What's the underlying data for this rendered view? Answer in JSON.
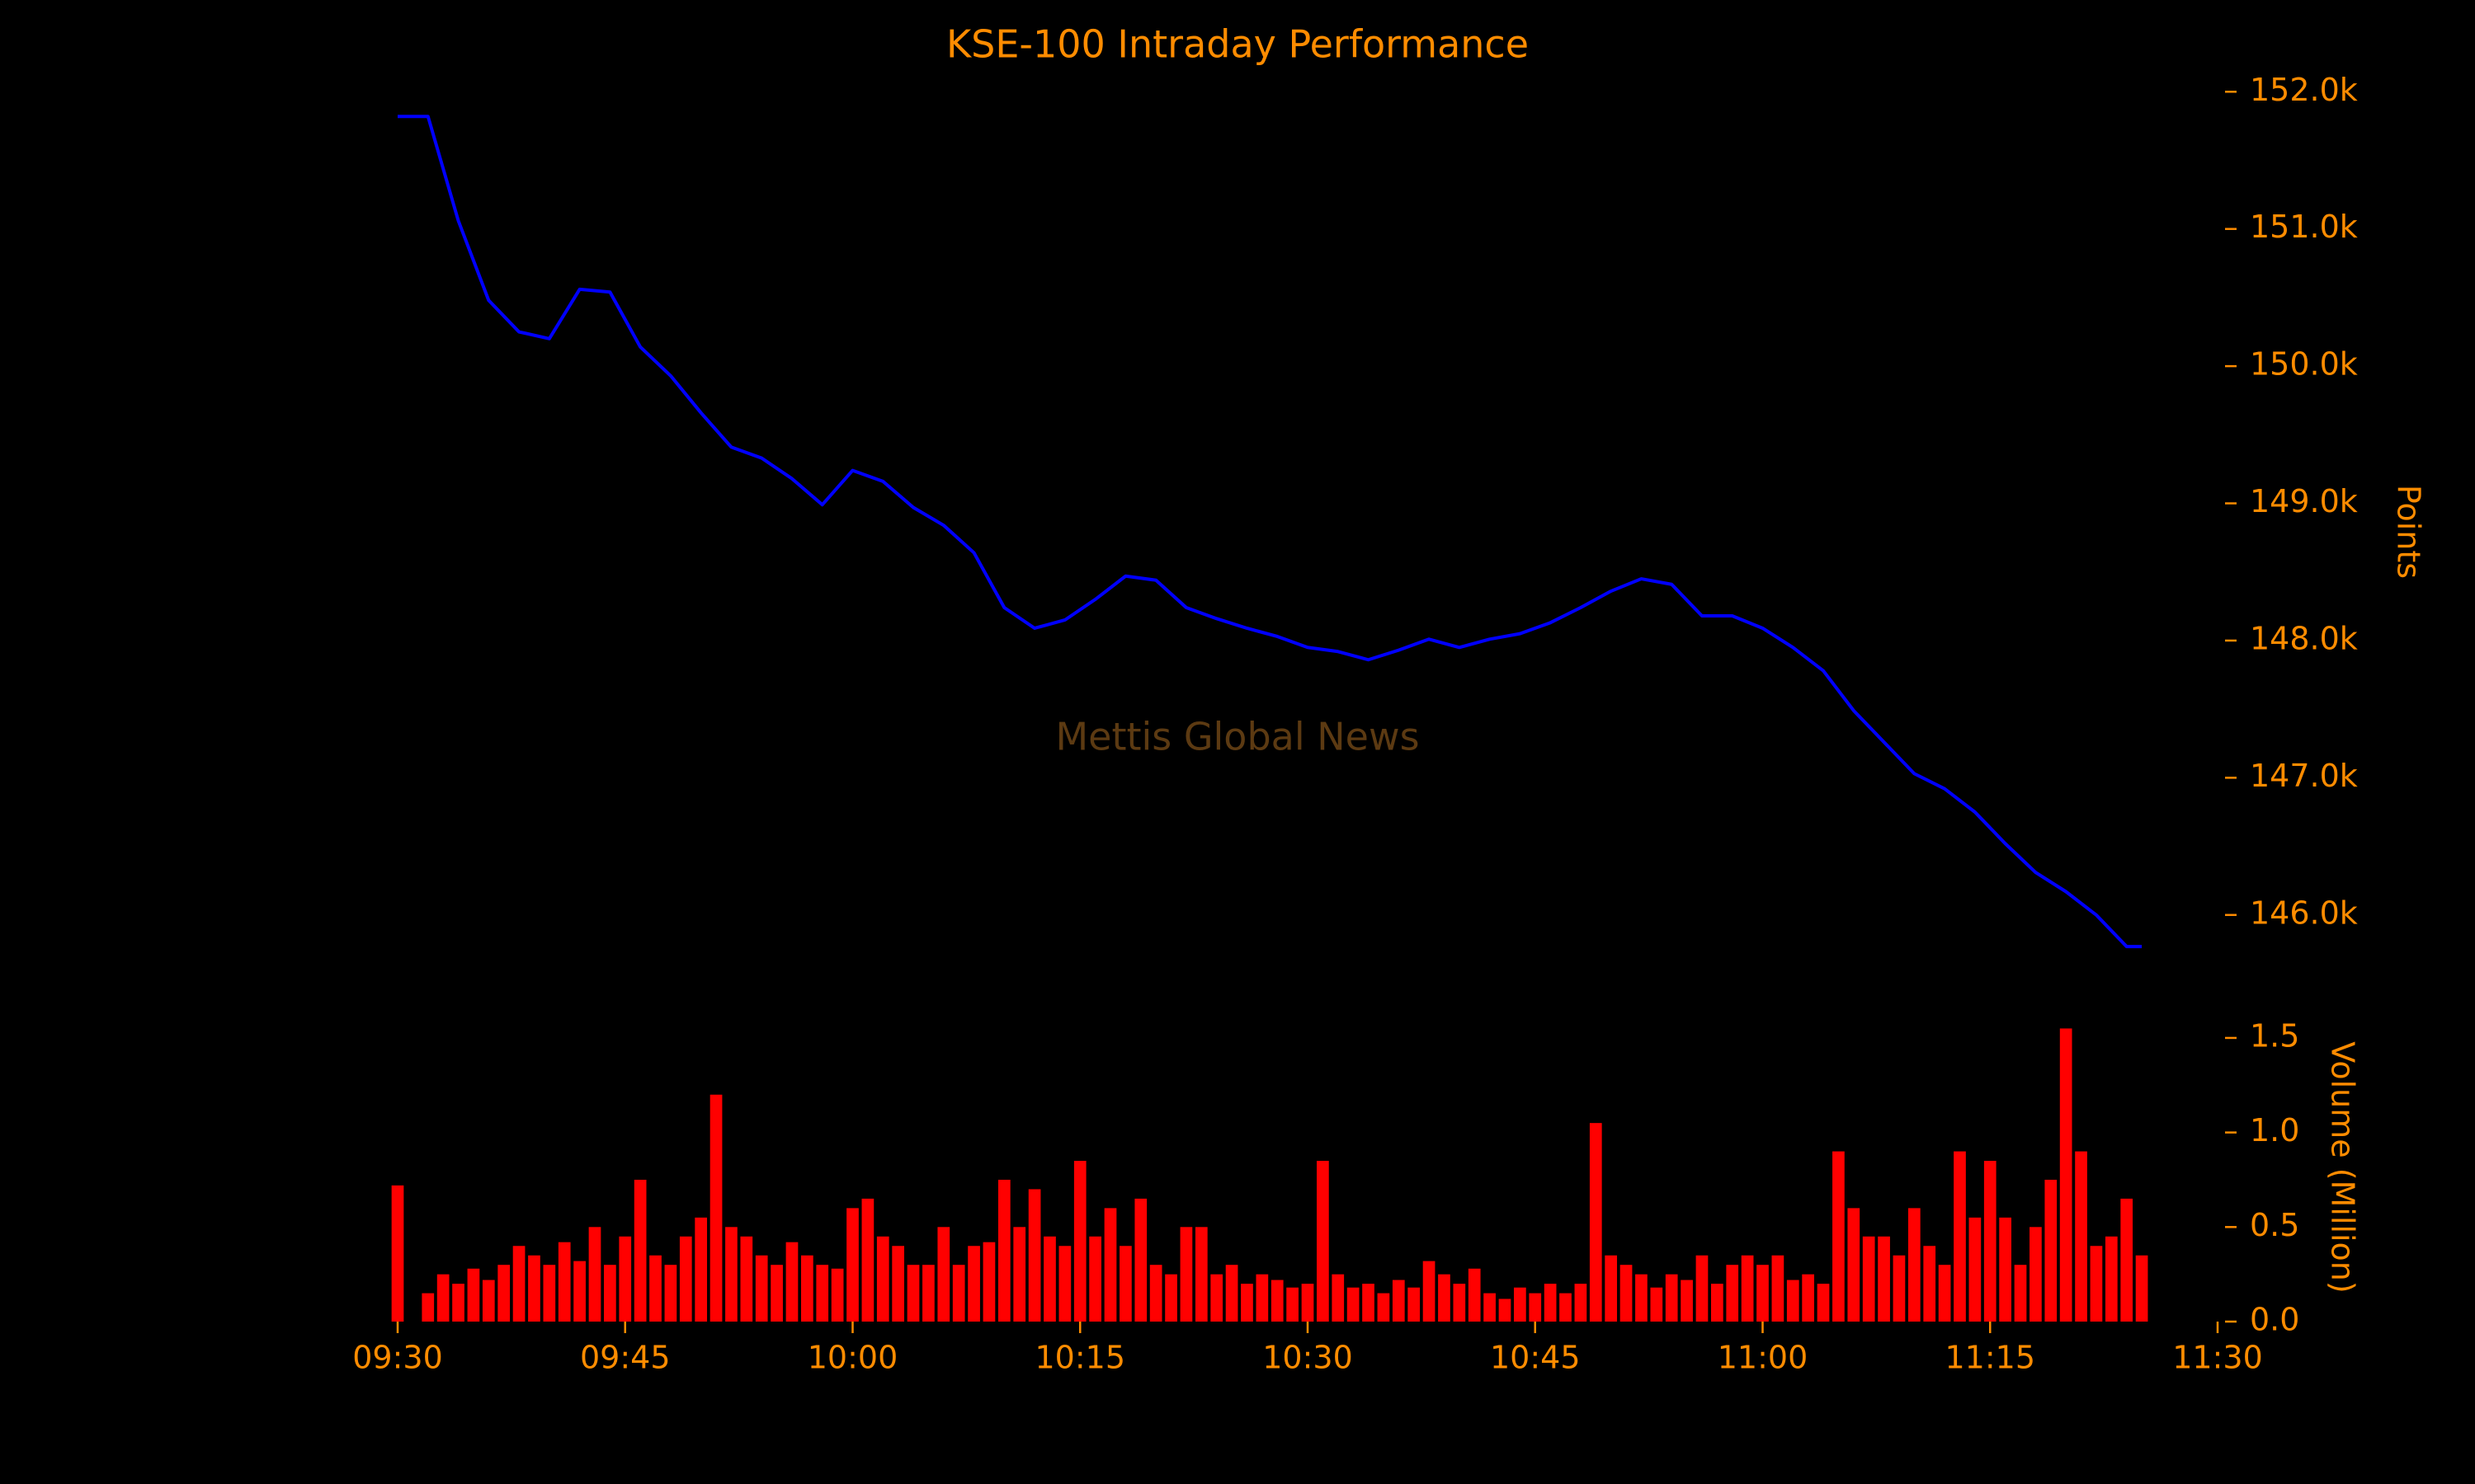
{
  "chart_data": [
    {
      "type": "line",
      "title": "KSE-100 Intraday Performance",
      "annotation": "Mettis Global News",
      "ylabel": "Points",
      "color": "#0000ff",
      "x": [
        "09:30",
        "09:32",
        "09:34",
        "09:36",
        "09:38",
        "09:40",
        "09:42",
        "09:44",
        "09:46",
        "09:48",
        "09:50",
        "09:52",
        "09:54",
        "09:56",
        "09:58",
        "10:00",
        "10:02",
        "10:04",
        "10:06",
        "10:08",
        "10:10",
        "10:12",
        "10:14",
        "10:16",
        "10:18",
        "10:20",
        "10:22",
        "10:24",
        "10:26",
        "10:28",
        "10:30",
        "10:32",
        "10:34",
        "10:36",
        "10:38",
        "10:40",
        "10:42",
        "10:44",
        "10:46",
        "10:48",
        "10:50",
        "10:52",
        "10:54",
        "10:56",
        "10:58",
        "11:00",
        "11:02",
        "11:04",
        "11:06",
        "11:08",
        "11:10",
        "11:12",
        "11:14",
        "11:16",
        "11:18",
        "11:20",
        "11:22",
        "11:24",
        "11:25"
      ],
      "values": [
        151820,
        151820,
        151060,
        150480,
        150250,
        150200,
        150560,
        150540,
        150140,
        149930,
        149660,
        149410,
        149330,
        149180,
        148990,
        149240,
        149160,
        148970,
        148840,
        148640,
        148240,
        148090,
        148150,
        148300,
        148470,
        148440,
        148240,
        148160,
        148090,
        148030,
        147950,
        147920,
        147860,
        147930,
        148010,
        147950,
        148010,
        148050,
        148130,
        148240,
        148360,
        148450,
        148410,
        148180,
        148180,
        148090,
        147950,
        147780,
        147490,
        147260,
        147030,
        146920,
        146750,
        146520,
        146310,
        146170,
        146000,
        145770,
        145770
      ],
      "xlim": [
        "09:30",
        "11:30"
      ],
      "ylim": [
        145500,
        152200
      ],
      "yticks": [
        {
          "value": 146000,
          "label": "146.0k"
        },
        {
          "value": 147000,
          "label": "147.0k"
        },
        {
          "value": 148000,
          "label": "148.0k"
        },
        {
          "value": 149000,
          "label": "149.0k"
        },
        {
          "value": 150000,
          "label": "150.0k"
        },
        {
          "value": 151000,
          "label": "151.0k"
        },
        {
          "value": 152000,
          "label": "152.0k"
        }
      ],
      "grid": false
    },
    {
      "type": "bar",
      "ylabel": "Volume (Million)",
      "color": "#ff0000",
      "x": [
        "09:30",
        "09:31",
        "09:32",
        "09:33",
        "09:34",
        "09:35",
        "09:36",
        "09:37",
        "09:38",
        "09:39",
        "09:40",
        "09:41",
        "09:42",
        "09:43",
        "09:44",
        "09:45",
        "09:46",
        "09:47",
        "09:48",
        "09:49",
        "09:50",
        "09:51",
        "09:52",
        "09:53",
        "09:54",
        "09:55",
        "09:56",
        "09:57",
        "09:58",
        "09:59",
        "10:00",
        "10:01",
        "10:02",
        "10:03",
        "10:04",
        "10:05",
        "10:06",
        "10:07",
        "10:08",
        "10:09",
        "10:10",
        "10:11",
        "10:12",
        "10:13",
        "10:14",
        "10:15",
        "10:16",
        "10:17",
        "10:18",
        "10:19",
        "10:20",
        "10:21",
        "10:22",
        "10:23",
        "10:24",
        "10:25",
        "10:26",
        "10:27",
        "10:28",
        "10:29",
        "10:30",
        "10:31",
        "10:32",
        "10:33",
        "10:34",
        "10:35",
        "10:36",
        "10:37",
        "10:38",
        "10:39",
        "10:40",
        "10:41",
        "10:42",
        "10:43",
        "10:44",
        "10:45",
        "10:46",
        "10:47",
        "10:48",
        "10:49",
        "10:50",
        "10:51",
        "10:52",
        "10:53",
        "10:54",
        "10:55",
        "10:56",
        "10:57",
        "10:58",
        "10:59",
        "11:00",
        "11:01",
        "11:02",
        "11:03",
        "11:04",
        "11:05",
        "11:06",
        "11:07",
        "11:08",
        "11:09",
        "11:10",
        "11:11",
        "11:12",
        "11:13",
        "11:14",
        "11:15",
        "11:16",
        "11:17",
        "11:18",
        "11:19",
        "11:20",
        "11:21",
        "11:22",
        "11:23",
        "11:24",
        "11:25"
      ],
      "values": [
        0.72,
        0.0,
        0.15,
        0.25,
        0.2,
        0.28,
        0.22,
        0.3,
        0.4,
        0.35,
        0.3,
        0.42,
        0.32,
        0.5,
        0.3,
        0.45,
        0.75,
        0.35,
        0.3,
        0.45,
        0.55,
        1.2,
        0.5,
        0.45,
        0.35,
        0.3,
        0.42,
        0.35,
        0.3,
        0.28,
        0.6,
        0.65,
        0.45,
        0.4,
        0.3,
        0.3,
        0.5,
        0.3,
        0.4,
        0.42,
        0.75,
        0.5,
        0.7,
        0.45,
        0.4,
        0.85,
        0.45,
        0.6,
        0.4,
        0.65,
        0.3,
        0.25,
        0.5,
        0.5,
        0.25,
        0.3,
        0.2,
        0.25,
        0.22,
        0.18,
        0.2,
        0.85,
        0.25,
        0.18,
        0.2,
        0.15,
        0.22,
        0.18,
        0.32,
        0.25,
        0.2,
        0.28,
        0.15,
        0.12,
        0.18,
        0.15,
        0.2,
        0.15,
        0.2,
        1.05,
        0.35,
        0.3,
        0.25,
        0.18,
        0.25,
        0.22,
        0.35,
        0.2,
        0.3,
        0.35,
        0.3,
        0.35,
        0.22,
        0.25,
        0.2,
        0.9,
        0.6,
        0.45,
        0.45,
        0.35,
        0.6,
        0.4,
        0.3,
        0.9,
        0.55,
        0.85,
        0.55,
        0.3,
        0.5,
        0.75,
        1.55,
        0.9,
        0.4,
        0.45,
        0.65,
        0.35
      ],
      "xlim": [
        "09:30",
        "11:30"
      ],
      "ylim": [
        0,
        1.6
      ],
      "yticks": [
        {
          "value": 0,
          "label": "0.0"
        },
        0.5,
        {
          "value": 1,
          "label": "1.0"
        },
        1.5
      ],
      "xticks": [
        "09:30",
        "09:45",
        "10:00",
        "10:15",
        "10:30",
        "10:45",
        "11:00",
        "11:15",
        "11:30"
      ],
      "grid": false
    }
  ]
}
